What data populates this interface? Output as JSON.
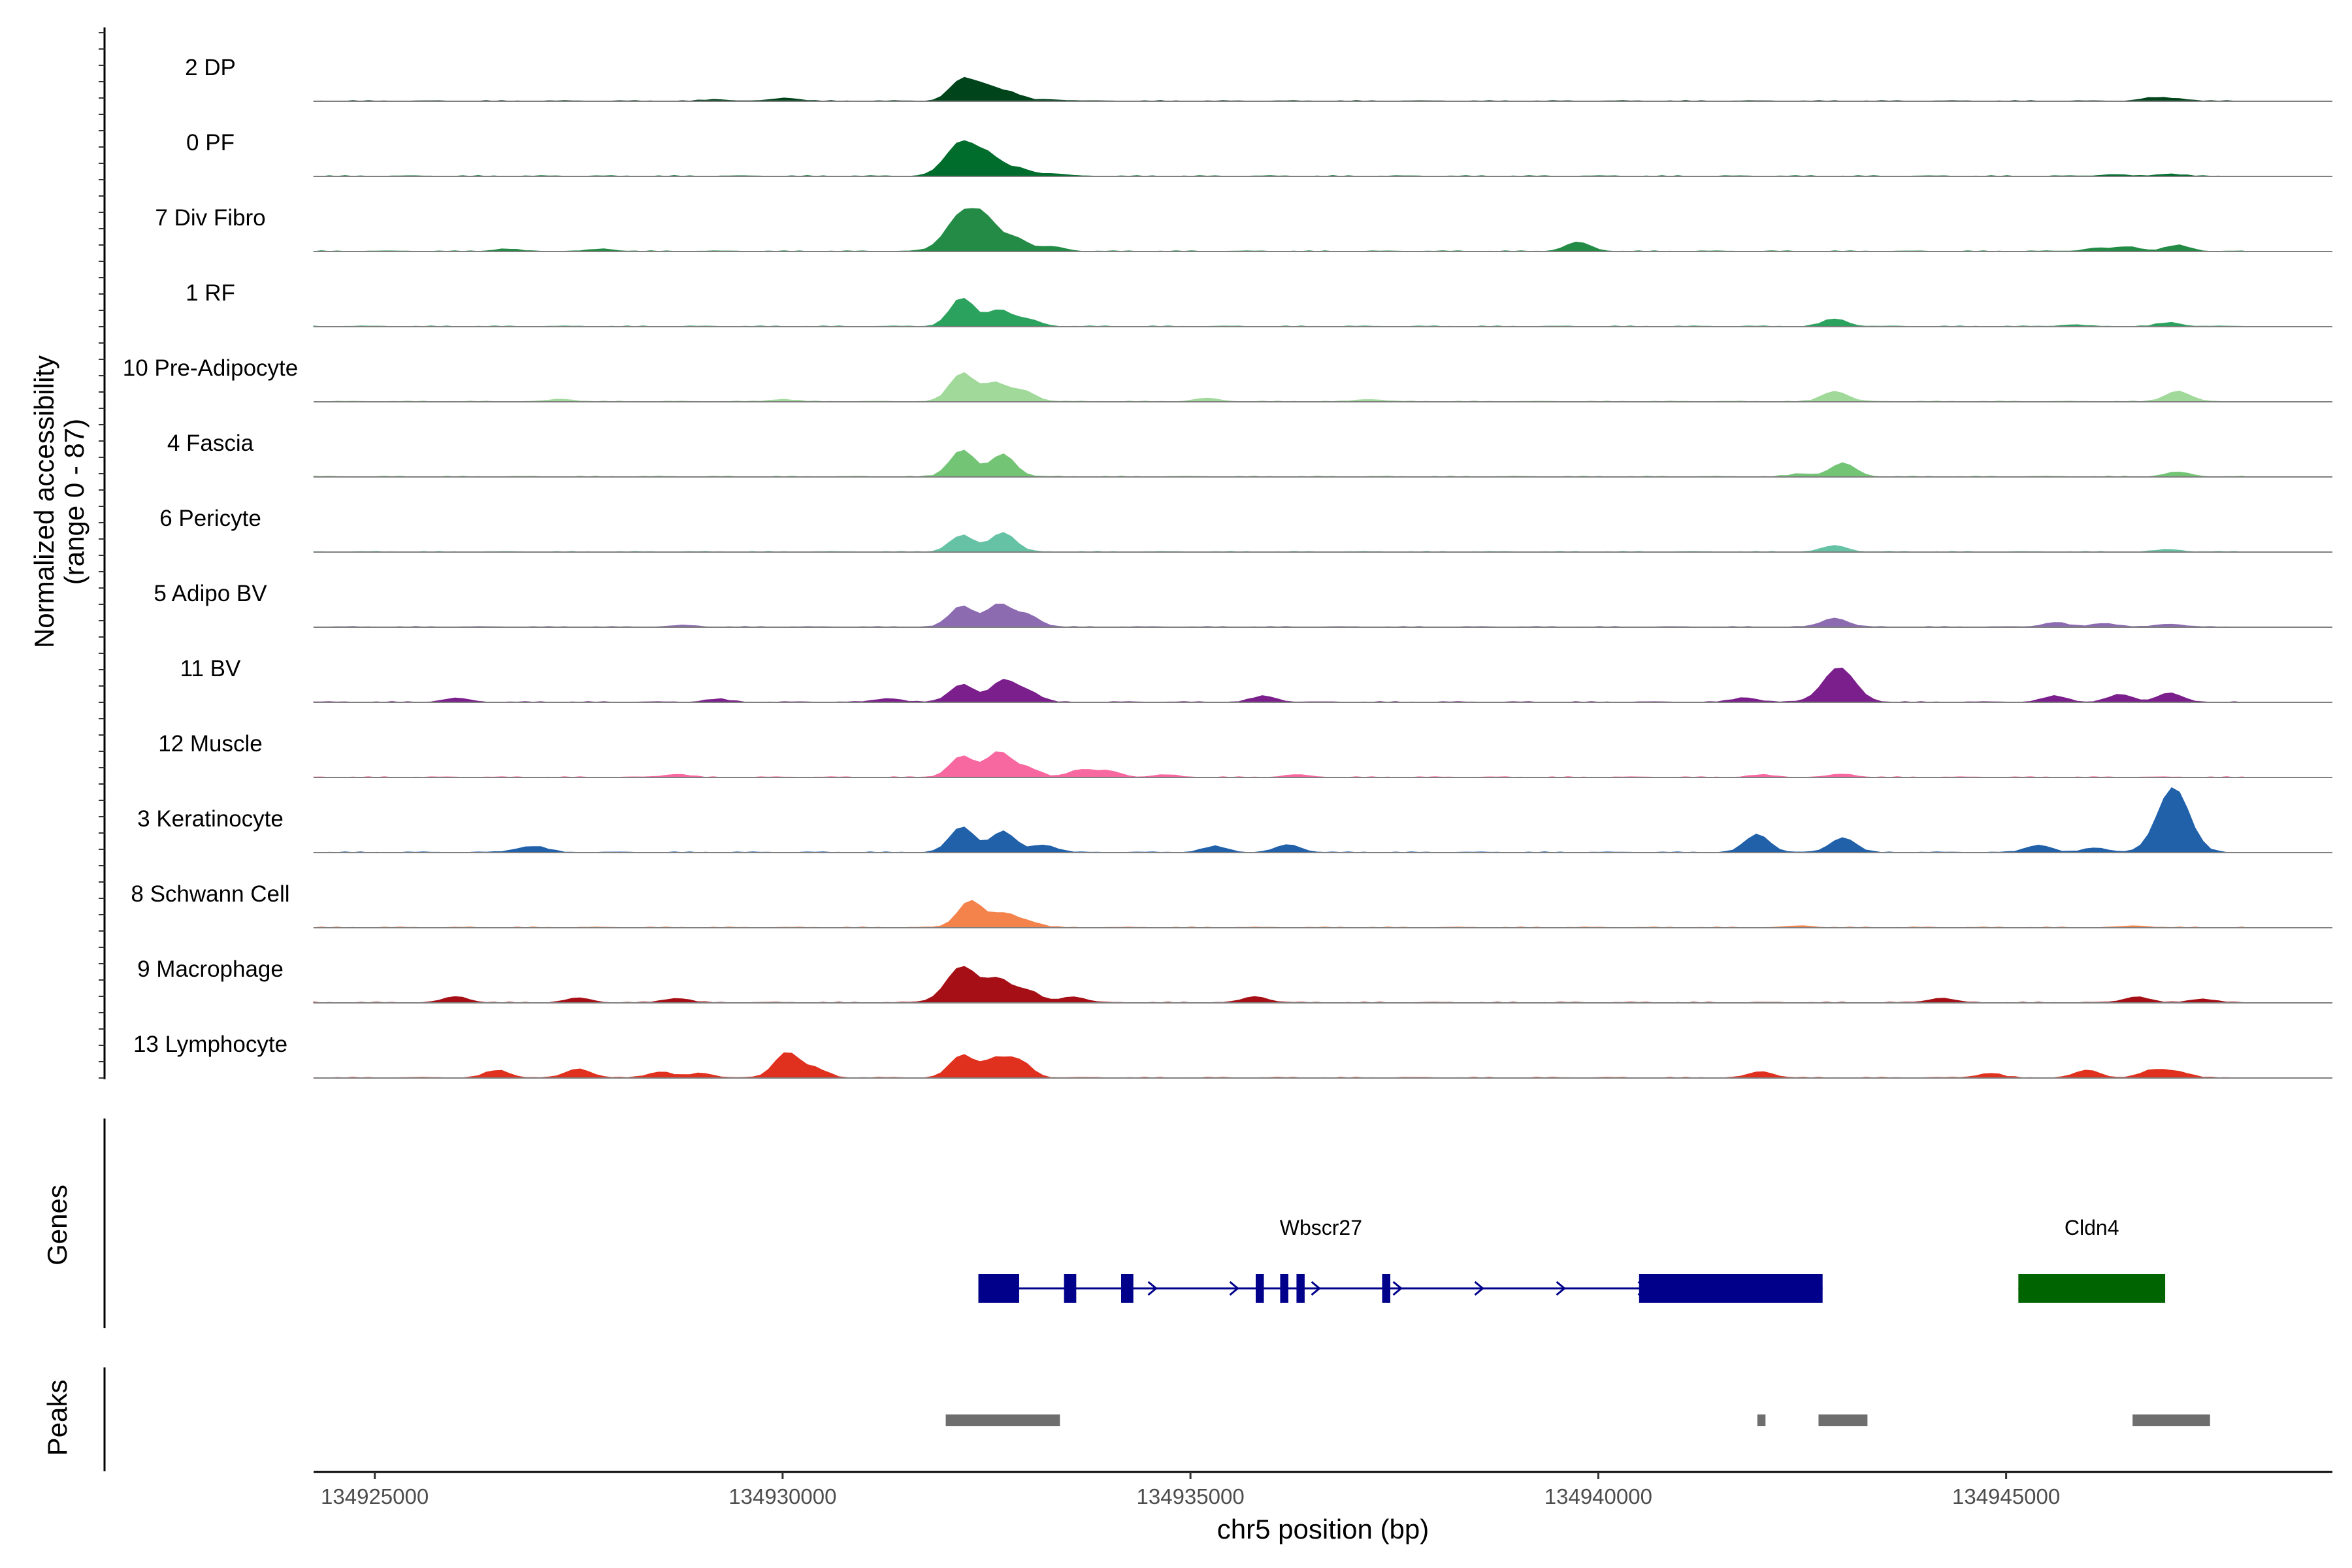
{
  "chart_data": {
    "type": "area",
    "title": "",
    "y_axis_title_line1": "Normalized accessibility",
    "y_axis_title_line2": "(range 0 - 87)",
    "ylim": [
      0,
      87
    ],
    "xlabel": "chr5 position (bp)",
    "xlim": [
      134924250,
      134949000
    ],
    "x_ticks": [
      134925000,
      134930000,
      134935000,
      134940000,
      134945000
    ],
    "x_tick_labels": [
      "134925000",
      "134930000",
      "134935000",
      "134940000",
      "134945000"
    ],
    "genes_label": "Genes",
    "peaks_label": "Peaks",
    "tracks": [
      {
        "name": "2 DP",
        "color": "#00441b",
        "peaks": [
          [
            134932200,
            28
          ],
          [
            134932500,
            18
          ],
          [
            134932800,
            10
          ],
          [
            134930050,
            4
          ],
          [
            134929200,
            2
          ],
          [
            134946800,
            4
          ],
          [
            134947100,
            3
          ],
          [
            134933300,
            2
          ]
        ]
      },
      {
        "name": "0 PF",
        "color": "#006d2c",
        "peaks": [
          [
            134932200,
            46
          ],
          [
            134932550,
            22
          ],
          [
            134932900,
            10
          ],
          [
            134933300,
            3
          ],
          [
            134947000,
            3
          ],
          [
            134946300,
            2
          ]
        ]
      },
      {
        "name": "7 Div Fibro",
        "color": "#238b45",
        "peaks": [
          [
            134932200,
            50
          ],
          [
            134932500,
            34
          ],
          [
            134932850,
            18
          ],
          [
            134933300,
            6
          ],
          [
            134939750,
            12
          ],
          [
            134946500,
            6
          ],
          [
            134947100,
            8
          ],
          [
            134946100,
            4
          ],
          [
            134926600,
            3
          ],
          [
            134927800,
            3
          ]
        ]
      },
      {
        "name": "1 RF",
        "color": "#2ca25f",
        "peaks": [
          [
            134932200,
            38
          ],
          [
            134932650,
            22
          ],
          [
            134933000,
            9
          ],
          [
            134942900,
            10
          ],
          [
            134947000,
            5
          ],
          [
            134945800,
            2
          ]
        ]
      },
      {
        "name": "10 Pre-Adipocyte",
        "color": "#a1d99b",
        "peaks": [
          [
            134932200,
            38
          ],
          [
            134932600,
            24
          ],
          [
            134932950,
            14
          ],
          [
            134942900,
            14
          ],
          [
            134947100,
            14
          ],
          [
            134935200,
            4
          ],
          [
            134937200,
            3
          ],
          [
            134930000,
            3
          ],
          [
            134927300,
            3
          ]
        ]
      },
      {
        "name": "4 Fascia",
        "color": "#74c476",
        "peaks": [
          [
            134932200,
            36
          ],
          [
            134932700,
            30
          ],
          [
            134943000,
            18
          ],
          [
            134947100,
            6
          ],
          [
            134942500,
            4
          ]
        ]
      },
      {
        "name": "6 Pericyte",
        "color": "#66c2a4",
        "peaks": [
          [
            134932200,
            22
          ],
          [
            134932700,
            26
          ],
          [
            134942900,
            8
          ],
          [
            134947000,
            3
          ]
        ]
      },
      {
        "name": "5 Adipo BV",
        "color": "#8c6bb1",
        "peaks": [
          [
            134932200,
            28
          ],
          [
            134932650,
            30
          ],
          [
            134933000,
            16
          ],
          [
            134942900,
            12
          ],
          [
            134945600,
            6
          ],
          [
            134946200,
            5
          ],
          [
            134947000,
            4
          ],
          [
            134928800,
            2
          ]
        ]
      },
      {
        "name": "11 BV",
        "color": "#7a1f8b",
        "peaks": [
          [
            134932200,
            24
          ],
          [
            134932700,
            28
          ],
          [
            134933000,
            14
          ],
          [
            134942950,
            46
          ],
          [
            134946400,
            10
          ],
          [
            134947000,
            12
          ],
          [
            134945600,
            8
          ],
          [
            134935900,
            8
          ],
          [
            134941800,
            6
          ],
          [
            134926000,
            5
          ],
          [
            134929200,
            4
          ],
          [
            134931300,
            5
          ]
        ]
      },
      {
        "name": "12 Muscle",
        "color": "#f768a1",
        "peaks": [
          [
            134932200,
            28
          ],
          [
            134932650,
            34
          ],
          [
            134933000,
            12
          ],
          [
            134933650,
            10
          ],
          [
            134934000,
            8
          ],
          [
            134928700,
            4
          ],
          [
            134943000,
            4
          ],
          [
            134942000,
            3
          ],
          [
            134934700,
            3
          ],
          [
            134936300,
            3
          ]
        ]
      },
      {
        "name": "3 Keratinocyte",
        "color": "#2061aa",
        "peaks": [
          [
            134932200,
            34
          ],
          [
            134932700,
            28
          ],
          [
            134933200,
            10
          ],
          [
            134941950,
            24
          ],
          [
            134943000,
            20
          ],
          [
            134947050,
            87
          ],
          [
            134945400,
            10
          ],
          [
            134946100,
            6
          ],
          [
            134935300,
            8
          ],
          [
            134936200,
            10
          ],
          [
            134927000,
            6
          ],
          [
            134926800,
            4
          ]
        ]
      },
      {
        "name": "8 Schwann Cell",
        "color": "#f4824b",
        "peaks": [
          [
            134932300,
            36
          ],
          [
            134932700,
            18
          ],
          [
            134933000,
            8
          ],
          [
            134942500,
            2
          ],
          [
            134946600,
            2
          ]
        ]
      },
      {
        "name": "9 Macrophage",
        "color": "#a50f15",
        "peaks": [
          [
            134932200,
            48
          ],
          [
            134932650,
            30
          ],
          [
            134933000,
            16
          ],
          [
            134933550,
            8
          ],
          [
            134926000,
            8
          ],
          [
            134927500,
            6
          ],
          [
            134928700,
            6
          ],
          [
            134935800,
            8
          ],
          [
            134944200,
            6
          ],
          [
            134946600,
            8
          ],
          [
            134947400,
            5
          ]
        ]
      },
      {
        "name": "13 Lymphocyte",
        "color": "#e0301e",
        "peaks": [
          [
            134932200,
            30
          ],
          [
            134932600,
            24
          ],
          [
            134932900,
            22
          ],
          [
            134930050,
            34
          ],
          [
            134930400,
            12
          ],
          [
            134926500,
            10
          ],
          [
            134927500,
            12
          ],
          [
            134928500,
            8
          ],
          [
            134929000,
            6
          ],
          [
            134942000,
            8
          ],
          [
            134946000,
            10
          ],
          [
            134946800,
            10
          ],
          [
            134944800,
            6
          ],
          [
            134947100,
            8
          ]
        ]
      }
    ],
    "genes": [
      {
        "name": "Wbscr27",
        "color": "#00008b",
        "start": 134932400,
        "end": 134942750,
        "exons": [
          [
            134932400,
            134932900
          ],
          [
            134933450,
            134933600
          ],
          [
            134934150,
            134934300
          ],
          [
            134935800,
            134935900
          ],
          [
            134936100,
            134936200
          ],
          [
            134936300,
            134936400
          ],
          [
            134937350,
            134937450
          ],
          [
            134940500,
            134942750
          ]
        ],
        "label_x": 134936600
      },
      {
        "name": "Cldn4",
        "color": "#006400",
        "start": 134945150,
        "end": 134946950,
        "exons": [
          [
            134945150,
            134946950
          ]
        ],
        "label_x": 134946050
      }
    ],
    "peak_regions": [
      [
        134932000,
        134933400
      ],
      [
        134941950,
        134942050
      ],
      [
        134942700,
        134943300
      ],
      [
        134946550,
        134947500
      ]
    ]
  }
}
